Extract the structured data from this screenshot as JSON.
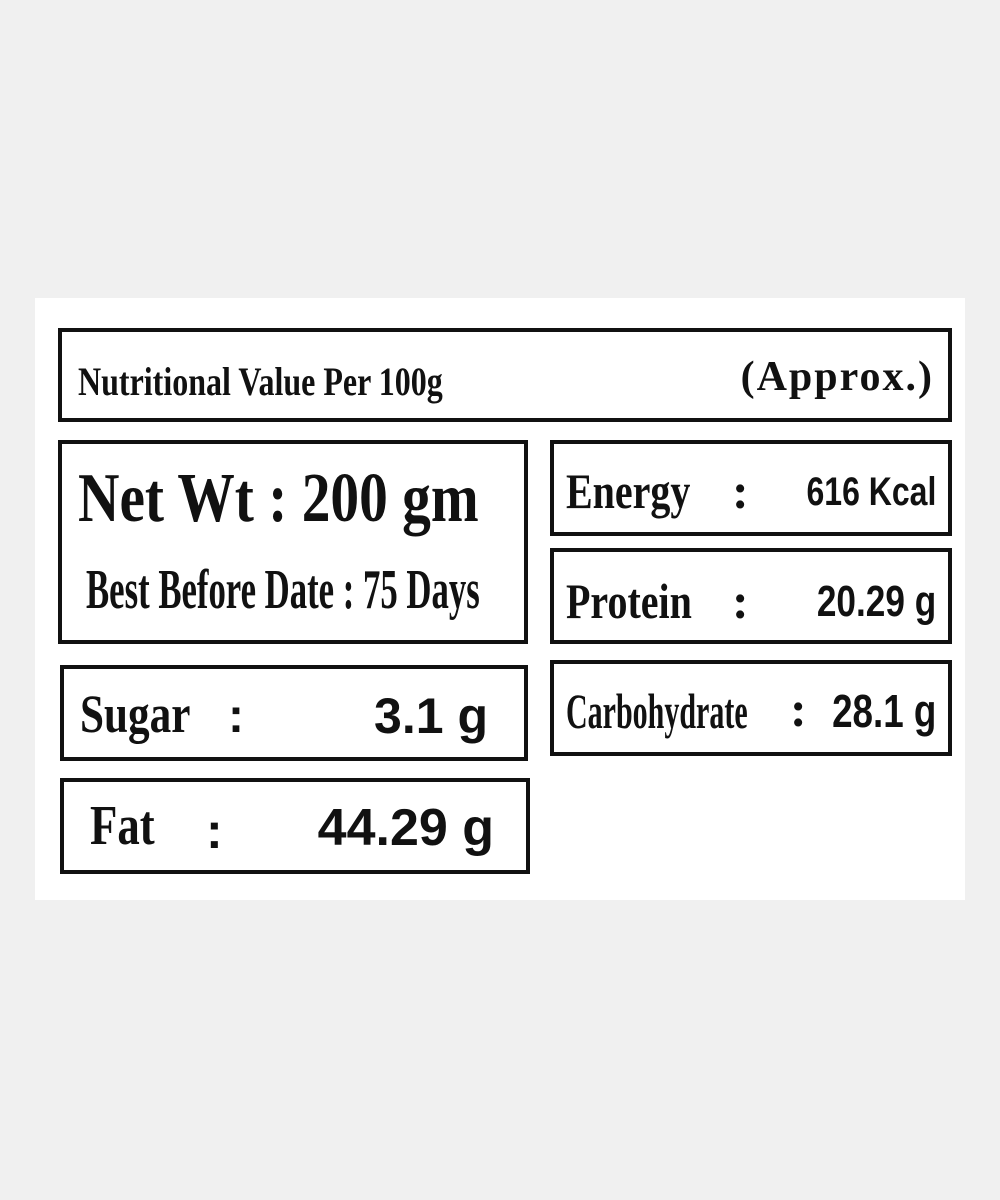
{
  "header": {
    "title": "Nutritional Value Per 100g",
    "note": "(Approx.)"
  },
  "net_weight": {
    "label": "Net Wt",
    "separator": ":",
    "value": "200 gm"
  },
  "best_before": {
    "label": "Best Before Date",
    "separator": ":",
    "value": "75 Days"
  },
  "nutrients": [
    {
      "label": "Energy",
      "separator": ":",
      "value": "616 Kcal"
    },
    {
      "label": "Protein",
      "separator": ":",
      "value": "20.29 g"
    },
    {
      "label": "Carbohydrate",
      "separator": ":",
      "value": "28.1 g"
    },
    {
      "label": "Sugar",
      "separator": ":",
      "value": "3.1 g"
    },
    {
      "label": "Fat",
      "separator": ":",
      "value": "44.29 g"
    }
  ]
}
